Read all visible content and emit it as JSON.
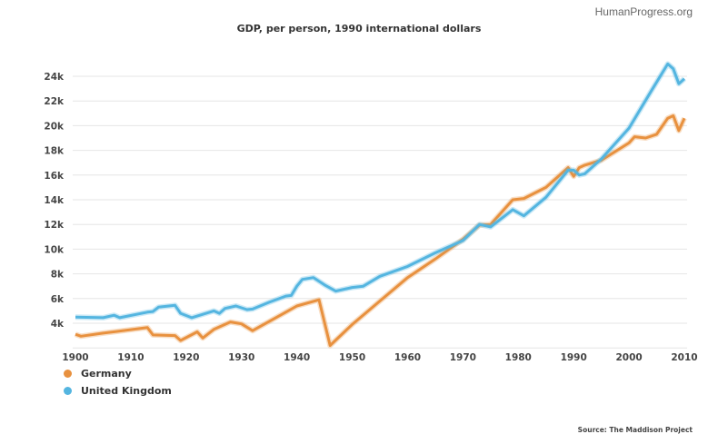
{
  "brand": "HumanProgress.org",
  "source": "Source: The Maddison Project",
  "chart_data": {
    "type": "line",
    "title": "GDP, per person, 1990 international dollars",
    "xlabel": "",
    "ylabel": "",
    "xlim": [
      1900,
      2010
    ],
    "ylim": [
      2000,
      25000
    ],
    "x_ticks": [
      "1900",
      "1910",
      "1920",
      "1930",
      "1940",
      "1950",
      "1960",
      "1970",
      "1980",
      "1990",
      "2000",
      "2010"
    ],
    "y_ticks": [
      {
        "v": 4000,
        "label": "4k"
      },
      {
        "v": 6000,
        "label": "6k"
      },
      {
        "v": 8000,
        "label": "8k"
      },
      {
        "v": 10000,
        "label": "10k"
      },
      {
        "v": 12000,
        "label": "12k"
      },
      {
        "v": 14000,
        "label": "14k"
      },
      {
        "v": 16000,
        "label": "16k"
      },
      {
        "v": 18000,
        "label": "18k"
      },
      {
        "v": 20000,
        "label": "20k"
      },
      {
        "v": 22000,
        "label": "22k"
      },
      {
        "v": 24000,
        "label": "24k"
      }
    ],
    "grid": true,
    "legend": "bottom-left",
    "series": [
      {
        "name": "Germany",
        "color": "#e8913f",
        "x": [
          1900,
          1901,
          1905,
          1913,
          1914,
          1918,
          1919,
          1922,
          1923,
          1925,
          1928,
          1930,
          1932,
          1938,
          1940,
          1944,
          1946,
          1950,
          1955,
          1960,
          1965,
          1970,
          1973,
          1975,
          1979,
          1981,
          1985,
          1989,
          1990,
          1991,
          1992,
          1995,
          2000,
          2001,
          2003,
          2005,
          2007,
          2008,
          2009,
          2010
        ],
        "y": [
          3100,
          2950,
          3200,
          3650,
          3050,
          3000,
          2600,
          3300,
          2800,
          3500,
          4100,
          3950,
          3400,
          4900,
          5400,
          5900,
          2200,
          3900,
          5800,
          7700,
          9200,
          10800,
          11950,
          12000,
          14000,
          14100,
          15000,
          16600,
          15900,
          16600,
          16800,
          17200,
          18600,
          19100,
          19000,
          19300,
          20600,
          20800,
          19600,
          20600
        ]
      },
      {
        "name": "United Kingdom",
        "color": "#54b5e0",
        "x": [
          1900,
          1905,
          1907,
          1908,
          1913,
          1914,
          1915,
          1918,
          1919,
          1921,
          1925,
          1926,
          1927,
          1929,
          1931,
          1932,
          1935,
          1938,
          1939,
          1940,
          1941,
          1943,
          1945,
          1947,
          1950,
          1952,
          1955,
          1960,
          1965,
          1970,
          1973,
          1975,
          1979,
          1981,
          1985,
          1989,
          1990,
          1991,
          1992,
          1995,
          2000,
          2004,
          2007,
          2008,
          2009,
          2010
        ],
        "y": [
          4500,
          4450,
          4650,
          4450,
          4900,
          4950,
          5300,
          5450,
          4800,
          4450,
          5000,
          4800,
          5200,
          5400,
          5100,
          5150,
          5700,
          6200,
          6250,
          7000,
          7550,
          7700,
          7100,
          6600,
          6900,
          7000,
          7800,
          8600,
          9700,
          10700,
          12000,
          11800,
          13200,
          12700,
          14200,
          16400,
          16400,
          16000,
          16100,
          17300,
          19800,
          22800,
          25000,
          24600,
          23400,
          23800
        ]
      }
    ]
  }
}
